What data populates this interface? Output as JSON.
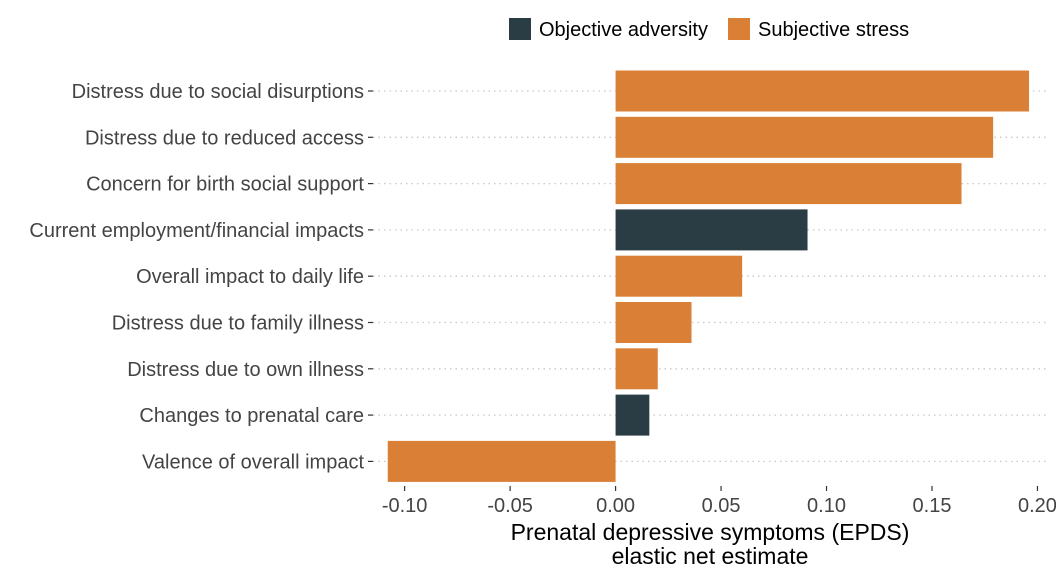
{
  "chart_data": {
    "type": "bar",
    "orientation": "horizontal",
    "categories": [
      "Distress due to social disurptions",
      "Distress due to reduced access",
      "Concern for birth social support",
      "Current employment/financial impacts",
      "Overall impact to daily life",
      "Distress due to family illness",
      "Distress due to own illness",
      "Changes to prenatal care",
      "Valence of overall impact"
    ],
    "values": [
      0.196,
      0.179,
      0.164,
      0.091,
      0.06,
      0.036,
      0.02,
      0.016,
      -0.108
    ],
    "groups": [
      "Subjective stress",
      "Subjective stress",
      "Subjective stress",
      "Objective adversity",
      "Subjective stress",
      "Subjective stress",
      "Subjective stress",
      "Objective adversity",
      "Subjective stress"
    ],
    "legend": {
      "position": "top",
      "entries": [
        {
          "name": "Objective adversity",
          "color": "#2b3d44"
        },
        {
          "name": "Subjective stress",
          "color": "#d98036"
        }
      ]
    },
    "xlabel_lines": [
      "Prenatal depressive symptoms (EPDS)",
      "elastic net estimate"
    ],
    "xlim": [
      -0.115,
      0.205
    ],
    "xticks": [
      -0.1,
      -0.05,
      0.0,
      0.05,
      0.1,
      0.15,
      0.2
    ],
    "xtick_labels": [
      "-0.10",
      "-0.05",
      "0.00",
      "0.05",
      "0.10",
      "0.15",
      "0.20"
    ],
    "grid": "horizontal-dotted"
  }
}
